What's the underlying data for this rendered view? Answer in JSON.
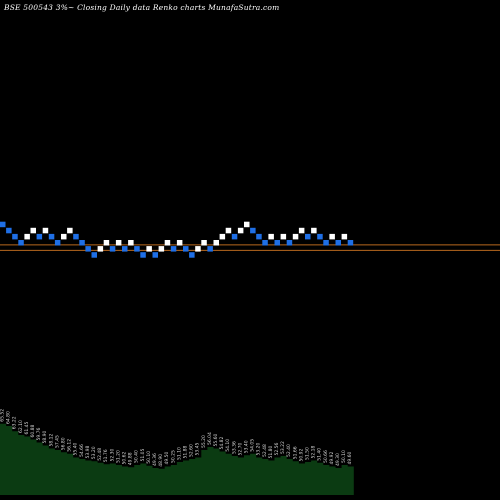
{
  "header": {
    "title": "BSE 500543 3%~  Closing Daily data  Renko  charts MunafaSutra.com"
  },
  "colors": {
    "background": "#000000",
    "up_brick": "#ffffff",
    "down_brick": "#1f6fe6",
    "price_line": "#b8681e",
    "volume_area": "#0b3b12"
  },
  "chart_data": {
    "type": "renko",
    "reversal_percent": 3,
    "bricks": [
      {
        "level": 19,
        "dir": "down"
      },
      {
        "level": 18,
        "dir": "down"
      },
      {
        "level": 17,
        "dir": "down"
      },
      {
        "level": 16,
        "dir": "down"
      },
      {
        "level": 17,
        "dir": "up"
      },
      {
        "level": 18,
        "dir": "up"
      },
      {
        "level": 17,
        "dir": "down"
      },
      {
        "level": 18,
        "dir": "up"
      },
      {
        "level": 17,
        "dir": "down"
      },
      {
        "level": 16,
        "dir": "down"
      },
      {
        "level": 17,
        "dir": "up"
      },
      {
        "level": 18,
        "dir": "up"
      },
      {
        "level": 17,
        "dir": "down"
      },
      {
        "level": 16,
        "dir": "down"
      },
      {
        "level": 15,
        "dir": "down"
      },
      {
        "level": 14,
        "dir": "down"
      },
      {
        "level": 15,
        "dir": "up"
      },
      {
        "level": 16,
        "dir": "up"
      },
      {
        "level": 15,
        "dir": "down"
      },
      {
        "level": 16,
        "dir": "up"
      },
      {
        "level": 15,
        "dir": "down"
      },
      {
        "level": 16,
        "dir": "up"
      },
      {
        "level": 15,
        "dir": "down"
      },
      {
        "level": 14,
        "dir": "down"
      },
      {
        "level": 15,
        "dir": "up"
      },
      {
        "level": 14,
        "dir": "down"
      },
      {
        "level": 15,
        "dir": "up"
      },
      {
        "level": 16,
        "dir": "up"
      },
      {
        "level": 15,
        "dir": "down"
      },
      {
        "level": 16,
        "dir": "up"
      },
      {
        "level": 15,
        "dir": "down"
      },
      {
        "level": 14,
        "dir": "down"
      },
      {
        "level": 15,
        "dir": "up"
      },
      {
        "level": 16,
        "dir": "up"
      },
      {
        "level": 15,
        "dir": "down"
      },
      {
        "level": 16,
        "dir": "up"
      },
      {
        "level": 17,
        "dir": "up"
      },
      {
        "level": 18,
        "dir": "up"
      },
      {
        "level": 17,
        "dir": "down"
      },
      {
        "level": 18,
        "dir": "up"
      },
      {
        "level": 19,
        "dir": "up"
      },
      {
        "level": 18,
        "dir": "down"
      },
      {
        "level": 17,
        "dir": "down"
      },
      {
        "level": 16,
        "dir": "down"
      },
      {
        "level": 17,
        "dir": "up"
      },
      {
        "level": 16,
        "dir": "down"
      },
      {
        "level": 17,
        "dir": "up"
      },
      {
        "level": 16,
        "dir": "down"
      },
      {
        "level": 17,
        "dir": "up"
      },
      {
        "level": 18,
        "dir": "up"
      },
      {
        "level": 17,
        "dir": "down"
      },
      {
        "level": 18,
        "dir": "up"
      },
      {
        "level": 17,
        "dir": "down"
      },
      {
        "level": 16,
        "dir": "down"
      },
      {
        "level": 17,
        "dir": "up"
      },
      {
        "level": 16,
        "dir": "down"
      },
      {
        "level": 17,
        "dir": "up"
      },
      {
        "level": 16,
        "dir": "down"
      }
    ],
    "reference_lines": [
      16.2,
      15.3
    ],
    "volume_profile": [
      0.95,
      0.92,
      0.85,
      0.8,
      0.78,
      0.74,
      0.7,
      0.66,
      0.62,
      0.6,
      0.57,
      0.55,
      0.5,
      0.48,
      0.46,
      0.45,
      0.43,
      0.41,
      0.42,
      0.4,
      0.38,
      0.37,
      0.4,
      0.42,
      0.39,
      0.36,
      0.35,
      0.38,
      0.4,
      0.44,
      0.46,
      0.48,
      0.5,
      0.6,
      0.64,
      0.62,
      0.58,
      0.55,
      0.52,
      0.5,
      0.53,
      0.55,
      0.5,
      0.48,
      0.46,
      0.5,
      0.52,
      0.48,
      0.45,
      0.42,
      0.44,
      0.46,
      0.43,
      0.4,
      0.38,
      0.36,
      0.4,
      0.38
    ],
    "volume_labels": [
      "65.52",
      "64.80",
      "63.22",
      "62.10",
      "61.45",
      "60.88",
      "59.76",
      "58.90",
      "58.12",
      "57.45",
      "56.80",
      "56.12",
      "55.40",
      "54.66",
      "53.98",
      "53.20",
      "52.48",
      "51.76",
      "52.30",
      "51.20",
      "50.62",
      "49.88",
      "50.40",
      "51.05",
      "50.10",
      "49.36",
      "48.90",
      "49.50",
      "50.25",
      "51.10",
      "51.88",
      "52.60",
      "53.45",
      "55.20",
      "56.04",
      "55.60",
      "54.82",
      "54.10",
      "53.36",
      "52.70",
      "53.40",
      "54.05",
      "53.20",
      "52.48",
      "51.80",
      "52.56",
      "53.22",
      "52.40",
      "51.66",
      "50.92",
      "51.50",
      "52.18",
      "51.40",
      "50.66",
      "49.92",
      "49.30",
      "50.10",
      "49.60"
    ]
  }
}
